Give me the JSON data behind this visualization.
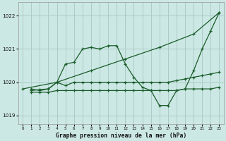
{
  "background_color": "#cce8e4",
  "grid_color": "#aaccc8",
  "line_color": "#1a5c2a",
  "title": "Graphe pression niveau de la mer (hPa)",
  "xlim": [
    -0.5,
    23.5
  ],
  "ylim": [
    1018.75,
    1022.4
  ],
  "yticks": [
    1019,
    1020,
    1021,
    1022
  ],
  "xticks": [
    0,
    1,
    2,
    3,
    4,
    5,
    6,
    7,
    8,
    9,
    10,
    11,
    12,
    13,
    14,
    15,
    16,
    17,
    18,
    19,
    20,
    21,
    22,
    23
  ],
  "series": [
    {
      "x": [
        0,
        4,
        8,
        12,
        16,
        20,
        23
      ],
      "y": [
        1019.8,
        1020.0,
        1020.35,
        1020.7,
        1021.05,
        1021.45,
        1022.1
      ]
    },
    {
      "x": [
        1,
        2,
        3,
        4,
        5,
        6,
        7,
        8,
        9,
        10,
        11,
        12,
        13,
        14,
        15,
        16,
        17,
        18,
        19,
        20,
        21,
        22,
        23
      ],
      "y": [
        1019.8,
        1019.75,
        1019.8,
        1020.0,
        1020.55,
        1020.6,
        1021.0,
        1021.05,
        1021.0,
        1021.1,
        1021.1,
        1020.55,
        1020.15,
        1019.85,
        1019.75,
        1019.3,
        1019.3,
        1019.75,
        1019.8,
        1020.35,
        1021.0,
        1021.55,
        1022.1
      ]
    },
    {
      "x": [
        1,
        2,
        3,
        4,
        5,
        6,
        7,
        8,
        9,
        10,
        11,
        12,
        13,
        14,
        15,
        16,
        17,
        18,
        19,
        20,
        21,
        22,
        23
      ],
      "y": [
        1019.7,
        1019.7,
        1019.7,
        1019.75,
        1019.75,
        1019.75,
        1019.75,
        1019.75,
        1019.75,
        1019.75,
        1019.75,
        1019.75,
        1019.75,
        1019.75,
        1019.75,
        1019.75,
        1019.75,
        1019.75,
        1019.8,
        1019.8,
        1019.8,
        1019.8,
        1019.85
      ]
    },
    {
      "x": [
        1,
        2,
        3,
        4,
        5,
        6,
        7,
        8,
        9,
        10,
        11,
        12,
        13,
        14,
        15,
        16,
        17,
        18,
        19,
        20,
        21,
        22,
        23
      ],
      "y": [
        1019.75,
        1019.78,
        1019.8,
        1020.0,
        1019.9,
        1020.0,
        1020.0,
        1020.0,
        1020.0,
        1020.0,
        1020.0,
        1020.0,
        1020.0,
        1020.0,
        1020.0,
        1020.0,
        1020.0,
        1020.05,
        1020.1,
        1020.15,
        1020.2,
        1020.25,
        1020.3
      ]
    }
  ]
}
